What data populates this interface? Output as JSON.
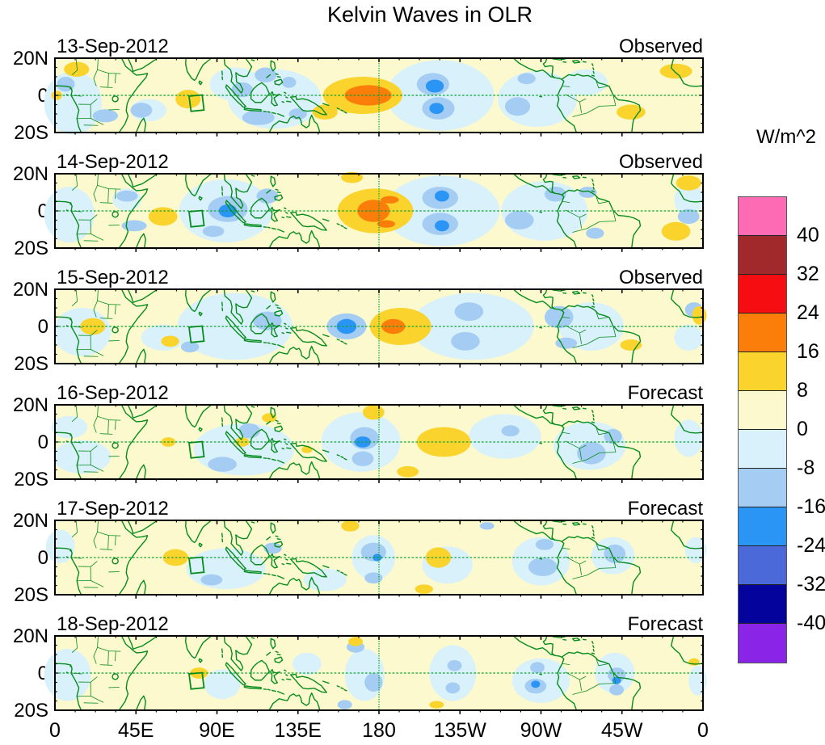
{
  "title": "Kelvin Waves in OLR",
  "colorbar": {
    "unit": "W/m^2",
    "tick_labels": [
      "40",
      "32",
      "24",
      "16",
      "8",
      "0",
      "-8",
      "-16",
      "-24",
      "-32",
      "-40"
    ],
    "colors": [
      "#FC6BB4",
      "#A1282B",
      "#F60D12",
      "#FB7D0A",
      "#FAD32C",
      "#FBF9CD",
      "#D9F1FA",
      "#A5CDF3",
      "#2B95F5",
      "#4B69D8",
      "#04049C",
      "#8A25E8"
    ]
  },
  "x_axis": {
    "tick_labels": [
      "0",
      "45E",
      "90E",
      "135E",
      "180",
      "135W",
      "90W",
      "45W",
      "0"
    ]
  },
  "y_axis": {
    "tick_labels": [
      "20N",
      "0",
      "20S"
    ]
  },
  "map_overlays": {
    "coastline_color": "#078C1E",
    "gridline_color": "#0CA434",
    "equator_line_lat": 0,
    "dateline_lon": 180,
    "region_box_lon": [
      74.5,
      82.8
    ],
    "region_box_lat": [
      -8.6,
      -0.4
    ]
  },
  "chart_data": {
    "type": "heatmap",
    "title": "Kelvin Waves in OLR",
    "unit": "W/m^2",
    "x_range_deg_lon": [
      0,
      360
    ],
    "y_range_deg_lat": [
      -20,
      20
    ],
    "contour_levels": [
      -40,
      -32,
      -24,
      -16,
      -8,
      0,
      8,
      16,
      24,
      32,
      40
    ],
    "bands": {
      "p8": {
        "range": [
          0,
          8
        ],
        "color": "#FBF9CD"
      },
      "p16": {
        "range": [
          8,
          16
        ],
        "color": "#FAD32C"
      },
      "p24": {
        "range": [
          16,
          24
        ],
        "color": "#FB7D0A"
      },
      "n8": {
        "range": [
          -8,
          0
        ],
        "color": "#D9F1FA"
      },
      "n16": {
        "range": [
          -16,
          -8
        ],
        "color": "#A5CDF3"
      },
      "n24": {
        "range": [
          -24,
          -16
        ],
        "color": "#2B95F5"
      }
    },
    "panels": [
      {
        "date": "13-Sep-2012",
        "label": "Observed",
        "blobs": [
          [
            10,
            -4,
            16,
            17,
            "n8"
          ],
          [
            52,
            -8,
            10,
            6,
            "n8"
          ],
          [
            100,
            6,
            14,
            9,
            "n8"
          ],
          [
            122,
            -2,
            26,
            16,
            "n8"
          ],
          [
            214,
            0,
            30,
            19,
            "n8"
          ],
          [
            268,
            -2,
            22,
            15,
            "n8"
          ],
          [
            295,
            7,
            12,
            7,
            "n8"
          ],
          [
            28,
            -11,
            7,
            3.5,
            "n16"
          ],
          [
            48,
            -8,
            6,
            4,
            "n16"
          ],
          [
            6,
            6,
            5,
            4,
            "n16"
          ],
          [
            104,
            3,
            6,
            4,
            "n16"
          ],
          [
            117,
            11,
            6,
            4,
            "n16"
          ],
          [
            130,
            7,
            4,
            3,
            "n16"
          ],
          [
            113,
            -12,
            9,
            4,
            "n16"
          ],
          [
            135,
            -10,
            5,
            3,
            "n16"
          ],
          [
            210,
            6,
            9,
            6,
            "n16"
          ],
          [
            213,
            -7,
            9,
            6,
            "n16"
          ],
          [
            257,
            -6,
            7,
            5,
            "n16"
          ],
          [
            262,
            9,
            5,
            3,
            "n16"
          ],
          [
            211,
            5,
            5,
            3.5,
            "n24"
          ],
          [
            212,
            -7,
            4,
            3,
            "n24"
          ],
          [
            1,
            0,
            3,
            2.5,
            "p16"
          ],
          [
            74,
            -2,
            7,
            5,
            "p16"
          ],
          [
            171,
            0,
            22,
            10,
            "p16"
          ],
          [
            150,
            -9,
            7,
            4,
            "p16"
          ],
          [
            12,
            14,
            7,
            4,
            "p16"
          ],
          [
            345,
            13,
            9,
            4,
            "p16"
          ],
          [
            320,
            -9,
            8,
            4,
            "p16"
          ],
          [
            174,
            0,
            13,
            5.5,
            "p24"
          ]
        ]
      },
      {
        "date": "14-Sep-2012",
        "label": "Observed",
        "blobs": [
          [
            8,
            -2,
            14,
            15,
            "n8"
          ],
          [
            40,
            6,
            8,
            6,
            "n8"
          ],
          [
            95,
            0,
            26,
            17,
            "n8"
          ],
          [
            215,
            0,
            32,
            19,
            "n8"
          ],
          [
            272,
            0,
            24,
            16,
            "n8"
          ],
          [
            352,
            6,
            8,
            9,
            "n8"
          ],
          [
            44,
            -8,
            7,
            3,
            "n16"
          ],
          [
            40,
            8,
            6,
            3,
            "n16"
          ],
          [
            96,
            1,
            11,
            7,
            "n16"
          ],
          [
            88,
            -11,
            6,
            3,
            "n16"
          ],
          [
            118,
            8,
            6,
            4,
            "n16"
          ],
          [
            214,
            7,
            10,
            6,
            "n16"
          ],
          [
            214,
            -7,
            10,
            6,
            "n16"
          ],
          [
            258,
            -5,
            8,
            5,
            "n16"
          ],
          [
            278,
            9,
            6,
            4,
            "n16"
          ],
          [
            296,
            10,
            5,
            3,
            "n16"
          ],
          [
            352,
            -3,
            6,
            4,
            "n16"
          ],
          [
            300,
            -12,
            5,
            3,
            "n16"
          ],
          [
            96,
            0,
            5,
            3.5,
            "n24"
          ],
          [
            215,
            8,
            4,
            3,
            "n24"
          ],
          [
            215,
            -8,
            4,
            3,
            "n24"
          ],
          [
            178,
            0,
            21,
            12,
            "p16"
          ],
          [
            60,
            -3,
            8,
            5,
            "p16"
          ],
          [
            345,
            -11,
            8,
            5,
            "p16"
          ],
          [
            352,
            15,
            7,
            4,
            "p16"
          ],
          [
            165,
            18,
            6,
            3,
            "p16"
          ],
          [
            177,
            0,
            9,
            6,
            "p24"
          ],
          [
            186,
            6,
            5,
            2,
            "p24"
          ],
          [
            184,
            -7,
            5,
            2,
            "p24"
          ]
        ]
      },
      {
        "date": "15-Sep-2012",
        "label": "Observed",
        "blobs": [
          [
            15,
            -3,
            16,
            13,
            "n8"
          ],
          [
            60,
            -6,
            12,
            7,
            "n8"
          ],
          [
            100,
            0,
            32,
            18,
            "n8"
          ],
          [
            232,
            0,
            34,
            18,
            "n8"
          ],
          [
            298,
            0,
            18,
            13,
            "n8"
          ],
          [
            352,
            -6,
            8,
            7,
            "n8"
          ],
          [
            75,
            -11,
            5,
            3,
            "n16"
          ],
          [
            118,
            3,
            8,
            5,
            "n16"
          ],
          [
            162,
            0,
            11,
            7,
            "n16"
          ],
          [
            230,
            8,
            8,
            5,
            "n16"
          ],
          [
            228,
            -8,
            8,
            5,
            "n16"
          ],
          [
            280,
            5,
            8,
            6,
            "n16"
          ],
          [
            284,
            -9,
            6,
            3,
            "n16"
          ],
          [
            355,
            9,
            5,
            4,
            "n16"
          ],
          [
            162,
            0,
            5.5,
            4,
            "n24"
          ],
          [
            192,
            0,
            17,
            10,
            "p16"
          ],
          [
            21,
            0,
            7,
            4.5,
            "p16"
          ],
          [
            64,
            -8,
            5,
            3,
            "p16"
          ],
          [
            320,
            -10,
            6,
            3,
            "p16"
          ],
          [
            358,
            6,
            4,
            5,
            "p16"
          ],
          [
            188,
            0,
            6.5,
            4,
            "p24"
          ]
        ]
      },
      {
        "date": "16-Sep-2012",
        "label": "Forecast",
        "blobs": [
          [
            15,
            -8,
            16,
            9,
            "n8"
          ],
          [
            8,
            8,
            10,
            6,
            "n8"
          ],
          [
            105,
            -4,
            28,
            14,
            "n8"
          ],
          [
            170,
            0,
            22,
            16,
            "n8"
          ],
          [
            250,
            3,
            20,
            12,
            "n8"
          ],
          [
            297,
            -2,
            20,
            13,
            "n8"
          ],
          [
            352,
            2,
            8,
            10,
            "n8"
          ],
          [
            108,
            6,
            6,
            4,
            "n16"
          ],
          [
            93,
            -12,
            8,
            4,
            "n16"
          ],
          [
            172,
            2,
            8,
            6,
            "n16"
          ],
          [
            171,
            -9,
            6,
            4,
            "n16"
          ],
          [
            298,
            -6,
            8,
            6,
            "n16"
          ],
          [
            253,
            6,
            5,
            3,
            "n16"
          ],
          [
            310,
            3,
            5,
            4,
            "n16"
          ],
          [
            171,
            0,
            4.5,
            3,
            "n24"
          ],
          [
            216,
            0,
            15,
            8,
            "p16"
          ],
          [
            177,
            16,
            6,
            4,
            "p16"
          ],
          [
            196,
            -16,
            6,
            3,
            "p16"
          ],
          [
            104,
            0,
            4,
            2.5,
            "p16"
          ],
          [
            63,
            0,
            4,
            2.5,
            "p16"
          ],
          [
            119,
            13,
            4,
            2.5,
            "p16"
          ],
          [
            140,
            -4,
            3,
            2,
            "p16"
          ]
        ]
      },
      {
        "date": "17-Sep-2012",
        "label": "Forecast",
        "blobs": [
          [
            3,
            6,
            8,
            9,
            "n8"
          ],
          [
            95,
            -6,
            22,
            11,
            "n8"
          ],
          [
            150,
            -12,
            12,
            6,
            "n8"
          ],
          [
            177,
            0,
            12,
            12,
            "n8"
          ],
          [
            218,
            -4,
            14,
            10,
            "n8"
          ],
          [
            270,
            -2,
            16,
            13,
            "n8"
          ],
          [
            310,
            1,
            12,
            10,
            "n8"
          ],
          [
            356,
            4,
            6,
            7,
            "n8"
          ],
          [
            87,
            -12,
            6,
            3,
            "n16"
          ],
          [
            121,
            5,
            5,
            3,
            "n16"
          ],
          [
            177,
            3,
            7,
            5,
            "n16"
          ],
          [
            177,
            -11,
            5,
            3,
            "n16"
          ],
          [
            271,
            -5,
            8,
            5,
            "n16"
          ],
          [
            272,
            7,
            5,
            3,
            "n16"
          ],
          [
            311,
            2,
            6,
            5,
            "n16"
          ],
          [
            240,
            17,
            4,
            2,
            "n16"
          ],
          [
            179,
            0,
            2.5,
            2,
            "n24"
          ],
          [
            67,
            0,
            7,
            4.5,
            "p16"
          ],
          [
            213,
            0,
            7,
            5.5,
            "p16"
          ],
          [
            164,
            17,
            5,
            3,
            "p16"
          ],
          [
            205,
            -17,
            5,
            2.5,
            "p16"
          ]
        ]
      },
      {
        "date": "18-Sep-2012",
        "label": "Forecast",
        "blobs": [
          [
            7,
            -1,
            13,
            14,
            "n8"
          ],
          [
            93,
            -6,
            10,
            8,
            "n8"
          ],
          [
            140,
            5,
            8,
            6,
            "n8"
          ],
          [
            172,
            -1,
            11,
            14,
            "n8"
          ],
          [
            221,
            0,
            13,
            15,
            "n8"
          ],
          [
            270,
            -4,
            16,
            12,
            "n8"
          ],
          [
            311,
            0,
            11,
            11,
            "n8"
          ],
          [
            357,
            -4,
            5,
            8,
            "n8"
          ],
          [
            167,
            14,
            5,
            3,
            "n16"
          ],
          [
            177,
            -5,
            5,
            5,
            "n16"
          ],
          [
            161,
            -17,
            4,
            2.5,
            "n16"
          ],
          [
            222,
            4,
            4,
            3,
            "n16"
          ],
          [
            221,
            -8,
            4,
            3,
            "n16"
          ],
          [
            267,
            -7,
            6,
            4,
            "n16"
          ],
          [
            268,
            3,
            4,
            3,
            "n16"
          ],
          [
            312,
            -1,
            5,
            4,
            "n16"
          ],
          [
            312,
            -9,
            4,
            3,
            "n16"
          ],
          [
            267,
            -6,
            2.5,
            2,
            "n24"
          ],
          [
            312,
            -4,
            2.5,
            2,
            "n24"
          ],
          [
            80,
            0,
            5,
            3,
            "p16"
          ],
          [
            167,
            17,
            4,
            2.5,
            "p16"
          ],
          [
            212,
            -17,
            4,
            2,
            "p16"
          ],
          [
            355,
            6,
            3,
            2,
            "p16"
          ]
        ]
      }
    ]
  }
}
